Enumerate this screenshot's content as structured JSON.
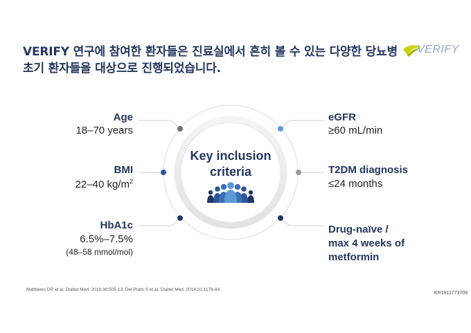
{
  "title": {
    "line1": "VERIFY 연구에 참여한 환자들은 진료실에서 흔히 볼 수 있는 다양한 당뇨병",
    "line2": "초기 환자들을 대상으로 진행되었습니다."
  },
  "logo": {
    "text": "VERIFY",
    "icon": "leaf-swoosh-icon"
  },
  "center": {
    "line1": "Key inclusion",
    "line2": "criteria",
    "icon": "people-group-icon"
  },
  "criteria_left": [
    {
      "label": "Age",
      "value": "18–70 years"
    },
    {
      "label": "BMI",
      "value": "22–40 kg/m",
      "sup": "2"
    },
    {
      "label": "HbA1c",
      "value": "6.5%–7.5%",
      "note": "(48–58 mmol/mol)"
    }
  ],
  "criteria_right": [
    {
      "label": "eGFR",
      "value": "≥60 mL/min"
    },
    {
      "label": "T2DM diagnosis",
      "value": "≤24 months"
    },
    {
      "label": "Drug-naïve /",
      "value": "max 4 weeks of",
      "value2": "metformin"
    }
  ],
  "reference": "Matthews DR et al. Diabet Med. 2019;36:505-13; Del Prato S et al. Diabet Med. 2014;31:1178-84.",
  "code": "KR1911773709",
  "colors": {
    "navy": "#24365e",
    "dark_dot": "#1f3864",
    "mid_dot": "#2e5597",
    "light_dot": "#5b9bd5",
    "gray_dot": "#6f6f6f",
    "logo_green": "#c8d400"
  }
}
